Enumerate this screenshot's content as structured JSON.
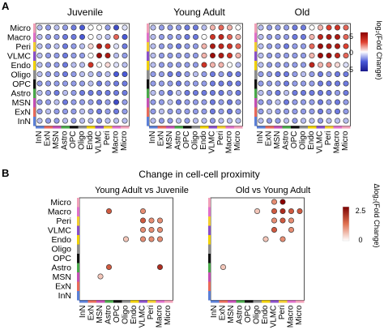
{
  "panel_a": {
    "label": "A",
    "titles": [
      "Juvenile",
      "Young Adult",
      "Old"
    ],
    "colorbar_label": "log₂(Fold Change)",
    "colorbar_ticks": [
      "5",
      "0",
      "-5"
    ]
  },
  "panel_b": {
    "label": "B",
    "title": "Change in cell-cell proximity",
    "titles": [
      "Young Adult vs Juvenile",
      "Old vs Young Adult"
    ],
    "colorbar_label": "Δlog₂(Fold Change)",
    "colorbar_ticks": [
      "2.5",
      "0"
    ]
  },
  "chart_data": [
    {
      "type": "heatmap",
      "panel": "A",
      "title": "Juvenile",
      "rows": [
        "Micro",
        "Macro",
        "Peri",
        "VLMC",
        "Endo",
        "Oligo",
        "OPC",
        "Astro",
        "MSN",
        "ExN",
        "InN"
      ],
      "cols": [
        "InN",
        "ExN",
        "MSN",
        "Astro",
        "OPC",
        "Oligo",
        "Endo",
        "VLMC",
        "Peri",
        "Macro",
        "Micro"
      ],
      "color_scale": {
        "min": -5,
        "max": 5,
        "low": "#1a1a8c",
        "mid": "#ffffff",
        "high": "#8b0000"
      },
      "values": [
        [
          -1,
          -1.5,
          -1,
          -1.5,
          -2,
          -2.5,
          0,
          0,
          -1.5,
          -3,
          -0.5
        ],
        [
          -1,
          -1.5,
          -1.5,
          -2,
          -2,
          -2.5,
          0,
          -0.5,
          -1,
          2,
          -2.5
        ],
        [
          -1,
          -1.5,
          -1,
          -2,
          -1.5,
          -1,
          0.5,
          4,
          3,
          -0.5,
          -2
        ],
        [
          -1,
          -1.5,
          -1.5,
          -2,
          -1.5,
          -1.5,
          0,
          4.5,
          4,
          -1,
          -1.5
        ],
        [
          -1,
          -1.5,
          -1.5,
          -2,
          -1,
          -1,
          3,
          0,
          0.5,
          -0.5,
          -1
        ],
        [
          -1,
          -1.5,
          -1.5,
          -2,
          -1.5,
          -1,
          -1,
          -1.5,
          -1,
          -2.5,
          -2.5
        ],
        [
          -1.5,
          -1.5,
          -1.5,
          -1.5,
          -1.5,
          -1.5,
          -1,
          -2,
          -1.5,
          -2,
          -2
        ],
        [
          -1,
          -1.5,
          -2,
          -1,
          -1.5,
          -2,
          -2,
          -2,
          -2,
          -2,
          -2
        ],
        [
          -1.5,
          -1.5,
          -1,
          -2,
          -1.5,
          -1.5,
          -1.5,
          -2,
          -1.5,
          -3,
          -1.5
        ],
        [
          -1.5,
          -1,
          -1.5,
          -1.5,
          -1.5,
          -1,
          -1.5,
          -2,
          -1.5,
          -2,
          -1.5
        ],
        [
          -1,
          -1.5,
          -1.5,
          -1,
          -1.5,
          -1,
          -1,
          -1.5,
          -1,
          -1,
          -1
        ]
      ]
    },
    {
      "type": "heatmap",
      "panel": "A",
      "title": "Young Adult",
      "rows": [
        "Micro",
        "Macro",
        "Peri",
        "VLMC",
        "Endo",
        "Oligo",
        "OPC",
        "Astro",
        "MSN",
        "ExN",
        "InN"
      ],
      "cols": [
        "InN",
        "ExN",
        "MSN",
        "Astro",
        "OPC",
        "Oligo",
        "Endo",
        "VLMC",
        "Peri",
        "Macro",
        "Micro"
      ],
      "color_scale": {
        "min": -5,
        "max": 5,
        "low": "#1a1a8c",
        "mid": "#ffffff",
        "high": "#8b0000"
      },
      "values": [
        [
          -1,
          -1.5,
          -1.5,
          -1.5,
          -2,
          -2,
          -1,
          1,
          2,
          1,
          0
        ],
        [
          -1,
          -1.5,
          -1.5,
          -1.5,
          -2,
          -2,
          0,
          3,
          3.5,
          2,
          1
        ],
        [
          -1,
          -1.5,
          -1.5,
          -2,
          -1.5,
          -1.5,
          1,
          4,
          3.5,
          3,
          2
        ],
        [
          -1,
          -1.5,
          -1.5,
          -1.5,
          -1.5,
          -1.5,
          1,
          4.5,
          4,
          3,
          1
        ],
        [
          -1,
          -1.5,
          -1.5,
          -1.5,
          -1.5,
          -1.5,
          3,
          1,
          1,
          0,
          -1
        ],
        [
          -1.5,
          -1.5,
          -2,
          -2,
          -1.5,
          -1,
          -1.5,
          -2,
          -1.5,
          -2,
          -2
        ],
        [
          -1.5,
          -1.5,
          -1.5,
          -2,
          -1.5,
          -1.5,
          -1.5,
          -2,
          -2,
          -2,
          -2
        ],
        [
          -1,
          -1.5,
          -2,
          -1,
          -2,
          -2,
          -2,
          -2,
          -2,
          -1.5,
          -2
        ],
        [
          -1.5,
          -1.5,
          -1,
          -2,
          -1.5,
          -1.5,
          -1.5,
          -2,
          -1.5,
          -2,
          -1.5
        ],
        [
          -1.5,
          -1,
          -1.5,
          -1.5,
          -1.5,
          -1.5,
          -1.5,
          -2,
          -1.5,
          -2,
          -1.5
        ],
        [
          -1,
          -1.5,
          -1.5,
          -1,
          -1.5,
          -1,
          -1,
          -1.5,
          -1,
          -1,
          -1
        ]
      ]
    },
    {
      "type": "heatmap",
      "panel": "A",
      "title": "Old",
      "rows": [
        "Micro",
        "Macro",
        "Peri",
        "VLMC",
        "Endo",
        "Oligo",
        "OPC",
        "Astro",
        "MSN",
        "ExN",
        "InN"
      ],
      "cols": [
        "InN",
        "ExN",
        "MSN",
        "Astro",
        "OPC",
        "Oligo",
        "Endo",
        "VLMC",
        "Peri",
        "Macro",
        "Micro"
      ],
      "color_scale": {
        "min": -5,
        "max": 5,
        "low": "#1a1a8c",
        "mid": "#ffffff",
        "high": "#8b0000"
      },
      "values": [
        [
          -1,
          -1.5,
          -1.5,
          -1.5,
          -2,
          -2,
          0,
          1,
          2.5,
          3,
          2
        ],
        [
          -1,
          -1.5,
          -1.5,
          -1.5,
          -2,
          -2,
          1,
          3.5,
          4,
          4,
          2
        ],
        [
          -1,
          -1.5,
          -1.5,
          -2,
          -1.5,
          -1.5,
          2,
          4.5,
          4,
          4,
          2.5
        ],
        [
          -1,
          -1.5,
          -1.5,
          -1.5,
          -1.5,
          -1.5,
          1,
          4.5,
          4.5,
          3.5,
          2
        ],
        [
          -1,
          -1.5,
          -1.5,
          -1.5,
          -1.5,
          -1.5,
          3.5,
          1,
          1.5,
          0.5,
          -0.5
        ],
        [
          -1.5,
          -1.5,
          -2,
          -2,
          -1.5,
          -1,
          -1.5,
          -2,
          -1.5,
          -2,
          -2
        ],
        [
          -1.5,
          -1.5,
          -1.5,
          -2,
          -1.5,
          -1.5,
          -1.5,
          -2,
          -2,
          -2,
          -2
        ],
        [
          -1,
          -1.5,
          -2,
          -1,
          -2,
          -2,
          -2,
          -2,
          -2,
          -1.5,
          -2
        ],
        [
          -1.5,
          -1.5,
          -1,
          -2,
          -1.5,
          -1.5,
          -1.5,
          -2,
          -1.5,
          -2,
          -1.5
        ],
        [
          -1.5,
          -1,
          -1.5,
          -1.5,
          -1.5,
          -1.5,
          -1.5,
          -2,
          -1.5,
          -2,
          -1.5
        ],
        [
          -1,
          -1.5,
          -1.5,
          -1,
          -1.5,
          -1,
          -1,
          -1.5,
          -1,
          -1,
          -1
        ]
      ]
    },
    {
      "type": "scatter",
      "panel": "B",
      "title": "Young Adult vs Juvenile",
      "rows": [
        "Micro",
        "Macro",
        "Peri",
        "VLMC",
        "Endo",
        "Oligo",
        "OPC",
        "Astro",
        "MSN",
        "ExN",
        "InN"
      ],
      "cols": [
        "InN",
        "ExN",
        "MSN",
        "Astro",
        "OPC",
        "Oligo",
        "Endo",
        "VLMC",
        "Peri",
        "Macro",
        "Micro"
      ],
      "color_scale": {
        "min": 0,
        "max": 2.5,
        "low": "#ffffff",
        "high": "#8b0000"
      },
      "points": [
        {
          "row": "Macro",
          "col": "Astro",
          "value": 1.5
        },
        {
          "row": "Macro",
          "col": "VLMC",
          "value": 1.0
        },
        {
          "row": "Peri",
          "col": "VLMC",
          "value": 1.5
        },
        {
          "row": "Peri",
          "col": "Peri",
          "value": 1.0
        },
        {
          "row": "Peri",
          "col": "Macro",
          "value": 1.0
        },
        {
          "row": "VLMC",
          "col": "VLMC",
          "value": 1.0
        },
        {
          "row": "VLMC",
          "col": "Peri",
          "value": 1.0
        },
        {
          "row": "VLMC",
          "col": "Macro",
          "value": 1.0
        },
        {
          "row": "Endo",
          "col": "Oligo",
          "value": 0.5
        },
        {
          "row": "Endo",
          "col": "VLMC",
          "value": 1.0
        },
        {
          "row": "Endo",
          "col": "Peri",
          "value": 1.0
        },
        {
          "row": "Endo",
          "col": "Macro",
          "value": 1.0
        },
        {
          "row": "Astro",
          "col": "Astro",
          "value": 1.5
        },
        {
          "row": "Astro",
          "col": "Macro",
          "value": 2.0
        },
        {
          "row": "MSN",
          "col": "MSN",
          "value": 0.5
        }
      ]
    },
    {
      "type": "scatter",
      "panel": "B",
      "title": "Old vs Young Adult",
      "rows": [
        "Micro",
        "Macro",
        "Peri",
        "VLMC",
        "Endo",
        "Oligo",
        "OPC",
        "Astro",
        "MSN",
        "ExN",
        "InN"
      ],
      "cols": [
        "InN",
        "ExN",
        "MSN",
        "Astro",
        "OPC",
        "Oligo",
        "Endo",
        "VLMC",
        "Peri",
        "Macro",
        "Micro"
      ],
      "color_scale": {
        "min": 0,
        "max": 2.5,
        "low": "#ffffff",
        "high": "#8b0000"
      },
      "points": [
        {
          "row": "Micro",
          "col": "VLMC",
          "value": 1.0
        },
        {
          "row": "Micro",
          "col": "Peri",
          "value": 2.5
        },
        {
          "row": "Macro",
          "col": "Oligo",
          "value": 0.5
        },
        {
          "row": "Macro",
          "col": "VLMC",
          "value": 1.5
        },
        {
          "row": "Macro",
          "col": "Peri",
          "value": 2.0
        },
        {
          "row": "Macro",
          "col": "Macro",
          "value": 1.5
        },
        {
          "row": "Macro",
          "col": "Micro",
          "value": 1.5
        },
        {
          "row": "Peri",
          "col": "VLMC",
          "value": 1.0
        },
        {
          "row": "Peri",
          "col": "Peri",
          "value": 1.5
        },
        {
          "row": "Peri",
          "col": "Macro",
          "value": 1.0
        },
        {
          "row": "VLMC",
          "col": "VLMC",
          "value": 1.5
        },
        {
          "row": "VLMC",
          "col": "Macro",
          "value": 1.0
        },
        {
          "row": "Endo",
          "col": "Endo",
          "value": 0.5
        },
        {
          "row": "Endo",
          "col": "Peri",
          "value": 1.0
        },
        {
          "row": "Astro",
          "col": "ExN",
          "value": 0.5
        }
      ]
    }
  ],
  "cell_type_colors": {
    "InN": "#5b7fd6",
    "ExN": "#e86a5a",
    "MSN": "#c44fb4",
    "Astro": "#49a84a",
    "OPC": "#111111",
    "Oligo": "#8c8c8c",
    "Endo": "#f0d000",
    "VLMC": "#8a4fc8",
    "Peri": "#f2cc2e",
    "Macro": "#e070c8",
    "Micro": "#f0a0b8"
  }
}
